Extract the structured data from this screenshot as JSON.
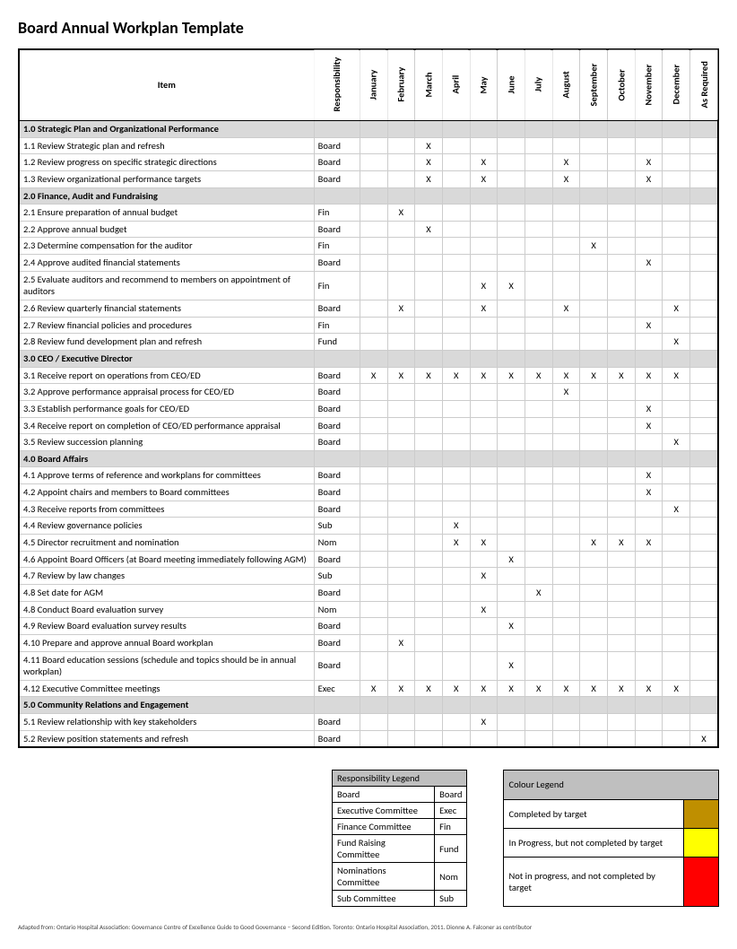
{
  "title": "Board Annual Workplan Template",
  "columns": {
    "item": "Item",
    "responsibility": "Responsibility",
    "months": [
      "January",
      "February",
      "March",
      "April",
      "May",
      "June",
      "July",
      "August",
      "September",
      "October",
      "November",
      "December",
      "As Required"
    ]
  },
  "mark": "X",
  "sections": [
    {
      "heading": "1.0 Strategic Plan and Organizational Performance",
      "rows": [
        {
          "item": "1.1 Review Strategic plan and refresh",
          "resp": "Board",
          "marks": [
            0,
            0,
            1,
            0,
            0,
            0,
            0,
            0,
            0,
            0,
            0,
            0,
            0
          ]
        },
        {
          "item": "1.2 Review progress on specific strategic directions",
          "resp": "Board",
          "marks": [
            0,
            0,
            1,
            0,
            1,
            0,
            0,
            1,
            0,
            0,
            1,
            0,
            0
          ]
        },
        {
          "item": "1.3 Review organizational performance targets",
          "resp": "Board",
          "marks": [
            0,
            0,
            1,
            0,
            1,
            0,
            0,
            1,
            0,
            0,
            1,
            0,
            0
          ]
        }
      ]
    },
    {
      "heading": "2.0 Finance, Audit and Fundraising",
      "rows": [
        {
          "item": "2.1 Ensure preparation of annual budget",
          "resp": "Fin",
          "marks": [
            0,
            1,
            0,
            0,
            0,
            0,
            0,
            0,
            0,
            0,
            0,
            0,
            0
          ]
        },
        {
          "item": "2.2 Approve annual budget",
          "resp": "Board",
          "marks": [
            0,
            0,
            1,
            0,
            0,
            0,
            0,
            0,
            0,
            0,
            0,
            0,
            0
          ]
        },
        {
          "item": "2.3 Determine compensation for the auditor",
          "resp": "Fin",
          "marks": [
            0,
            0,
            0,
            0,
            0,
            0,
            0,
            0,
            1,
            0,
            0,
            0,
            0
          ]
        },
        {
          "item": "2.4 Approve audited financial statements",
          "resp": "Board",
          "marks": [
            0,
            0,
            0,
            0,
            0,
            0,
            0,
            0,
            0,
            0,
            1,
            0,
            0
          ]
        },
        {
          "item": "2.5 Evaluate auditors and recommend to members on appointment of auditors",
          "resp": "Fin",
          "marks": [
            0,
            0,
            0,
            0,
            1,
            1,
            0,
            0,
            0,
            0,
            0,
            0,
            0
          ]
        },
        {
          "item": "2.6 Review quarterly financial statements",
          "resp": "Board",
          "marks": [
            0,
            1,
            0,
            0,
            1,
            0,
            0,
            1,
            0,
            0,
            0,
            1,
            0
          ]
        },
        {
          "item": "2.7 Review financial policies and procedures",
          "resp": "Fin",
          "marks": [
            0,
            0,
            0,
            0,
            0,
            0,
            0,
            0,
            0,
            0,
            1,
            0,
            0
          ]
        },
        {
          "item": "2.8 Review fund development plan and refresh",
          "resp": "Fund",
          "marks": [
            0,
            0,
            0,
            0,
            0,
            0,
            0,
            0,
            0,
            0,
            0,
            1,
            0
          ]
        }
      ]
    },
    {
      "heading": "3.0 CEO / Executive Director",
      "rows": [
        {
          "item": "3.1 Receive report on operations from CEO/ED",
          "resp": "Board",
          "marks": [
            1,
            1,
            1,
            1,
            1,
            1,
            1,
            1,
            1,
            1,
            1,
            1,
            0
          ]
        },
        {
          "item": "3.2 Approve performance appraisal process for CEO/ED",
          "resp": "Board",
          "marks": [
            0,
            0,
            0,
            0,
            0,
            0,
            0,
            1,
            0,
            0,
            0,
            0,
            0
          ]
        },
        {
          "item": "3.3 Establish performance goals for CEO/ED",
          "resp": "Board",
          "marks": [
            0,
            0,
            0,
            0,
            0,
            0,
            0,
            0,
            0,
            0,
            1,
            0,
            0
          ]
        },
        {
          "item": "3.4 Receive report on completion of CEO/ED performance appraisal",
          "resp": "Board",
          "marks": [
            0,
            0,
            0,
            0,
            0,
            0,
            0,
            0,
            0,
            0,
            1,
            0,
            0
          ]
        },
        {
          "item": "3.5 Review succession planning",
          "resp": "Board",
          "marks": [
            0,
            0,
            0,
            0,
            0,
            0,
            0,
            0,
            0,
            0,
            0,
            1,
            0
          ]
        }
      ]
    },
    {
      "heading": "4.0 Board Affairs",
      "rows": [
        {
          "item": "4.1 Approve terms of reference and workplans for committees",
          "resp": "Board",
          "marks": [
            0,
            0,
            0,
            0,
            0,
            0,
            0,
            0,
            0,
            0,
            1,
            0,
            0
          ]
        },
        {
          "item": "4.2 Appoint chairs and members to Board committees",
          "resp": "Board",
          "marks": [
            0,
            0,
            0,
            0,
            0,
            0,
            0,
            0,
            0,
            0,
            1,
            0,
            0
          ]
        },
        {
          "item": "4.3 Receive reports from committees",
          "resp": "Board",
          "marks": [
            0,
            0,
            0,
            0,
            0,
            0,
            0,
            0,
            0,
            0,
            0,
            1,
            0
          ]
        },
        {
          "item": "4.4 Review governance policies",
          "resp": "Sub",
          "marks": [
            0,
            0,
            0,
            1,
            0,
            0,
            0,
            0,
            0,
            0,
            0,
            0,
            0
          ]
        },
        {
          "item": "4.5 Director recruitment and nomination",
          "resp": "Nom",
          "marks": [
            0,
            0,
            0,
            1,
            1,
            0,
            0,
            0,
            1,
            1,
            1,
            0,
            0
          ]
        },
        {
          "item": "4.6 Appoint Board Officers (at Board meeting immediately following AGM)",
          "resp": "Board",
          "marks": [
            0,
            0,
            0,
            0,
            0,
            1,
            0,
            0,
            0,
            0,
            0,
            0,
            0
          ]
        },
        {
          "item": "4.7 Review by law changes",
          "resp": "Sub",
          "marks": [
            0,
            0,
            0,
            0,
            1,
            0,
            0,
            0,
            0,
            0,
            0,
            0,
            0
          ]
        },
        {
          "item": "4.8 Set date for AGM",
          "resp": "Board",
          "marks": [
            0,
            0,
            0,
            0,
            0,
            0,
            1,
            0,
            0,
            0,
            0,
            0,
            0
          ]
        },
        {
          "item": "4.8 Conduct Board evaluation survey",
          "resp": "Nom",
          "marks": [
            0,
            0,
            0,
            0,
            1,
            0,
            0,
            0,
            0,
            0,
            0,
            0,
            0
          ]
        },
        {
          "item": "4.9 Review Board evaluation survey results",
          "resp": "Board",
          "marks": [
            0,
            0,
            0,
            0,
            0,
            1,
            0,
            0,
            0,
            0,
            0,
            0,
            0
          ]
        },
        {
          "item": "4.10 Prepare and approve annual Board workplan",
          "resp": "Board",
          "marks": [
            0,
            1,
            0,
            0,
            0,
            0,
            0,
            0,
            0,
            0,
            0,
            0,
            0
          ]
        },
        {
          "item": "4.11 Board education sessions (schedule and topics should be in annual workplan)",
          "resp": "Board",
          "marks": [
            0,
            0,
            0,
            0,
            0,
            1,
            0,
            0,
            0,
            0,
            0,
            0,
            0
          ]
        },
        {
          "item": "4.12 Executive Committee meetings",
          "resp": "Exec",
          "marks": [
            1,
            1,
            1,
            1,
            1,
            1,
            1,
            1,
            1,
            1,
            1,
            1,
            0
          ]
        }
      ]
    },
    {
      "heading": "5.0 Community Relations and Engagement",
      "rows": [
        {
          "item": "5.1 Review relationship with key stakeholders",
          "resp": "Board",
          "marks": [
            0,
            0,
            0,
            0,
            1,
            0,
            0,
            0,
            0,
            0,
            0,
            0,
            0
          ]
        },
        {
          "item": "5.2 Review position statements and refresh",
          "resp": "Board",
          "marks": [
            0,
            0,
            0,
            0,
            0,
            0,
            0,
            0,
            0,
            0,
            0,
            0,
            1
          ]
        }
      ]
    }
  ],
  "responsibility_legend": {
    "title": "Responsibility Legend",
    "rows": [
      {
        "name": "Board",
        "code": "Board"
      },
      {
        "name": "Executive Committee",
        "code": "Exec"
      },
      {
        "name": "Finance Committee",
        "code": "Fin"
      },
      {
        "name": "Fund Raising Committee",
        "code": "Fund"
      },
      {
        "name": "Nominations Committee",
        "code": "Nom"
      },
      {
        "name": "Sub Committee",
        "code": "Sub"
      }
    ]
  },
  "colour_legend": {
    "title": "Colour Legend",
    "rows": [
      {
        "label": "Completed by target",
        "color": "#bf8f00"
      },
      {
        "label": "In Progress, but not completed by target",
        "color": "#ffff00"
      },
      {
        "label": "Not in progress, and not completed by target",
        "color": "#ff0000"
      }
    ]
  },
  "colors": {
    "section_bg": "#d9d9d9",
    "legend_header_bg": "#bfbfbf",
    "border": "#000000",
    "grid": "#cccccc"
  },
  "footnote": "Adapted from: Ontario Hospital Association: Governance Centre of Excellence Guide to Good Governance – Second Edition. Toronto: Ontario Hospital Association, 2011. Dionne A. Falconer as contributor"
}
